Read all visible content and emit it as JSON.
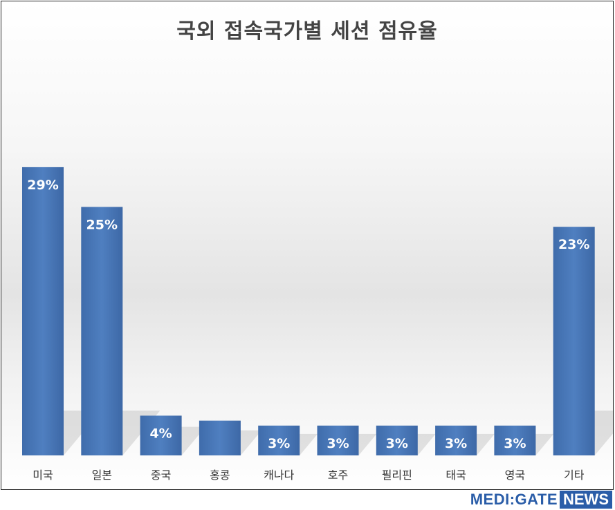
{
  "chart_data": {
    "type": "bar",
    "title": "국외 접속국가별 세션 점유율",
    "categories": [
      "미국",
      "일본",
      "중국",
      "홍콩",
      "캐나다",
      "호주",
      "필리핀",
      "태국",
      "영국",
      "기타"
    ],
    "values": [
      29,
      25,
      4,
      3.5,
      3,
      3,
      3,
      3,
      3,
      23
    ],
    "data_labels": [
      "29%",
      "25%",
      "4%",
      "",
      "3%",
      "3%",
      "3%",
      "3%",
      "3%",
      "23%"
    ],
    "ylim": [
      0,
      34
    ],
    "grid": false,
    "legend": "none",
    "bar_color": "#4a78b8"
  },
  "logo": {
    "medigate": "MEDI:GATE",
    "news": "NEWS"
  }
}
